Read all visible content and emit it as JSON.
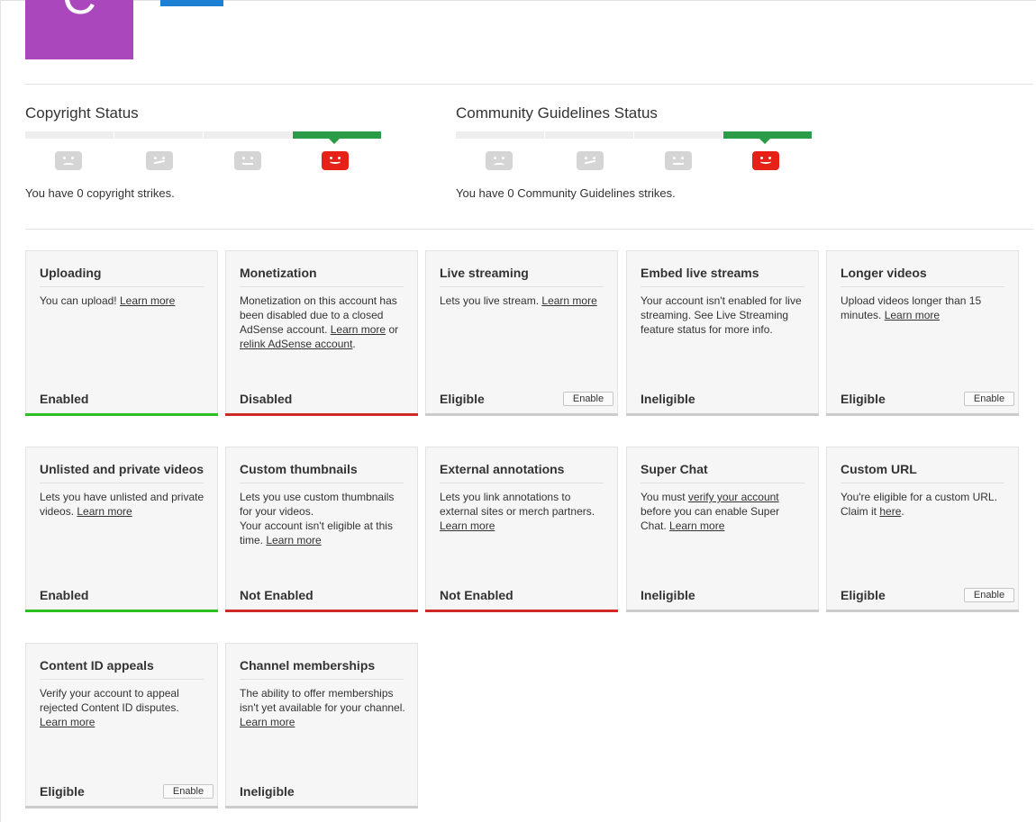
{
  "channel": {
    "avatar_letter": "C",
    "avatar_color": "#ab47bc"
  },
  "copyright": {
    "title": "Copyright Status",
    "text": "You have 0 copyright strikes."
  },
  "community": {
    "title": "Community Guidelines Status",
    "text": "You have 0 Community Guidelines strikes."
  },
  "colors": {
    "enabled_bar": "#2bc221",
    "disabled_bar": "#cf2a27",
    "neutral_bar": "#cccccc",
    "active_segment": "#2b9c47",
    "active_face": "#e62117"
  },
  "features": [
    {
      "title": "Uploading",
      "desc": [
        "You can upload! ",
        {
          "link": "Learn more"
        }
      ],
      "status": "Enabled"
    },
    {
      "title": "Monetization",
      "desc": [
        "Monetization on this account has been disabled due to a closed AdSense account. ",
        {
          "link": "Learn more"
        },
        " or ",
        {
          "link": "relink AdSense account"
        },
        "."
      ],
      "status": "Disabled"
    },
    {
      "title": "Live streaming",
      "desc": [
        "Lets you live stream. ",
        {
          "link": "Learn more"
        }
      ],
      "status": "Eligible",
      "button": "Enable"
    },
    {
      "title": "Embed live streams",
      "desc": [
        "Your account isn't enabled for live streaming. See Live Streaming feature status for more info."
      ],
      "status": "Ineligible"
    },
    {
      "title": "Longer videos",
      "desc": [
        "Upload videos longer than 15 minutes. ",
        {
          "link": "Learn more"
        }
      ],
      "status": "Eligible",
      "button": "Enable"
    },
    {
      "title": "Unlisted and private videos",
      "desc": [
        "Lets you have unlisted and private videos. ",
        {
          "link": "Learn more"
        }
      ],
      "status": "Enabled"
    },
    {
      "title": "Custom thumbnails",
      "desc": [
        "Lets you use custom thumbnails for your videos.",
        {
          "br": true
        },
        "Your account isn't eligible at this time. ",
        {
          "link": "Learn more"
        }
      ],
      "status": "Not Enabled"
    },
    {
      "title": "External annotations",
      "desc": [
        "Lets you link annotations to external sites or merch partners. ",
        {
          "link": "Learn more"
        }
      ],
      "status": "Not Enabled"
    },
    {
      "title": "Super Chat",
      "desc": [
        "You must ",
        {
          "link": "verify your account"
        },
        " before you can enable Super Chat. ",
        {
          "link": "Learn more"
        }
      ],
      "status": "Ineligible"
    },
    {
      "title": "Custom URL",
      "desc": [
        "You're eligible for a custom URL. Claim it ",
        {
          "link": "here"
        },
        "."
      ],
      "status": "Eligible",
      "button": "Enable"
    },
    {
      "title": "Content ID appeals",
      "desc": [
        "Verify your account to appeal rejected Content ID disputes. ",
        {
          "link": "Learn more"
        }
      ],
      "status": "Eligible",
      "button": "Enable"
    },
    {
      "title": "Channel memberships",
      "desc": [
        "The ability to offer memberships isn't yet available for your channel. ",
        {
          "link": "Learn more"
        }
      ],
      "status": "Ineligible"
    }
  ]
}
